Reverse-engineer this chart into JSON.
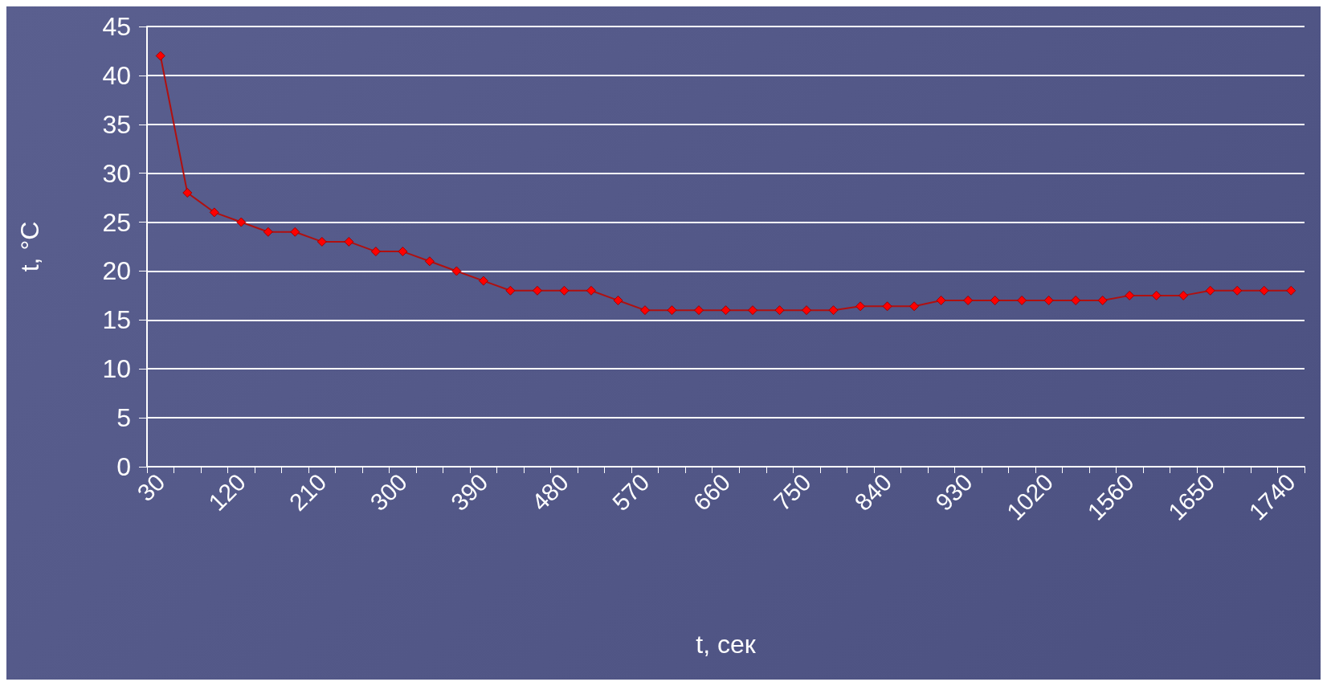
{
  "chart_data": {
    "type": "line",
    "xlabel": "t, сек",
    "ylabel": "t, °C",
    "categories": [
      "30",
      null,
      null,
      "120",
      null,
      null,
      "210",
      null,
      null,
      "300",
      null,
      null,
      "390",
      null,
      null,
      "480",
      null,
      null,
      "570",
      null,
      null,
      "660",
      null,
      null,
      "750",
      null,
      null,
      "840",
      null,
      null,
      "930",
      null,
      null,
      "1020",
      null,
      null,
      "1560",
      null,
      null,
      "1650",
      null,
      null,
      "1740"
    ],
    "series": [
      {
        "color": "#ff0000",
        "values": [
          42,
          28,
          26,
          25,
          24,
          24,
          23,
          23,
          22,
          22,
          21,
          20,
          19,
          18,
          18,
          18,
          18,
          17,
          16,
          16,
          16,
          16,
          16,
          16,
          16,
          16,
          16.4,
          16.4,
          16.4,
          17,
          17,
          17,
          17,
          17,
          17,
          17,
          17.5,
          17.5,
          17.5,
          18,
          18,
          18,
          18
        ]
      }
    ],
    "ylim": [
      0,
      45
    ],
    "yticks": [
      0,
      5,
      10,
      15,
      20,
      25,
      30,
      35,
      40,
      45
    ],
    "grid": "y",
    "marker": "diamond"
  }
}
